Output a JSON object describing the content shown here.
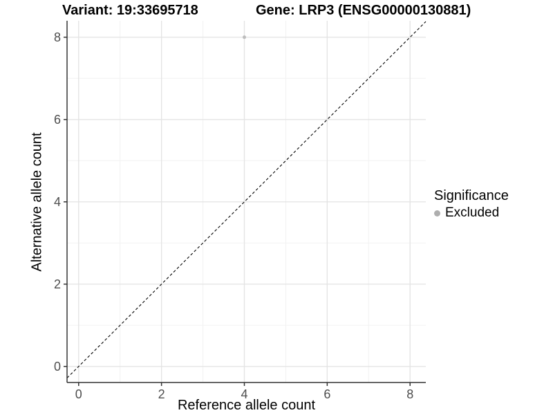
{
  "figure": {
    "title_left": "Variant: 19:33695718",
    "title_right": "Gene: LRP3 (ENSG00000130881)"
  },
  "chart_data": {
    "type": "scatter",
    "title": "Variant: 19:33695718   Gene: LRP3 (ENSG00000130881)",
    "xlabel": "Reference allele count",
    "ylabel": "Alternative allele count",
    "xlim": [
      -0.28,
      8.38
    ],
    "ylim": [
      -0.39,
      8.4
    ],
    "xticks": [
      0,
      2,
      4,
      6,
      8
    ],
    "yticks": [
      0,
      2,
      4,
      6,
      8
    ],
    "xminor_ticks": [
      1,
      3,
      5,
      7
    ],
    "yminor_ticks": [
      1,
      3,
      5,
      7
    ],
    "grid": "major+minor on white background",
    "points": [
      {
        "x": 4,
        "y": 8,
        "series": "Excluded"
      }
    ],
    "identity_line": {
      "equation": "y = x",
      "style": "dashed",
      "color": "#000000"
    },
    "legend": {
      "title": "Significance",
      "position": "right",
      "entries": [
        {
          "label": "Excluded",
          "marker": "circle",
          "color": "#aeaeae"
        }
      ]
    },
    "colors": {
      "point": "#bdbdbd",
      "grid_major": "#e4e4e4",
      "grid_minor": "#f2f2f2",
      "axis_line": "#333333",
      "tick_label": "#4d4d4d",
      "dashed_line": "#000000"
    }
  }
}
